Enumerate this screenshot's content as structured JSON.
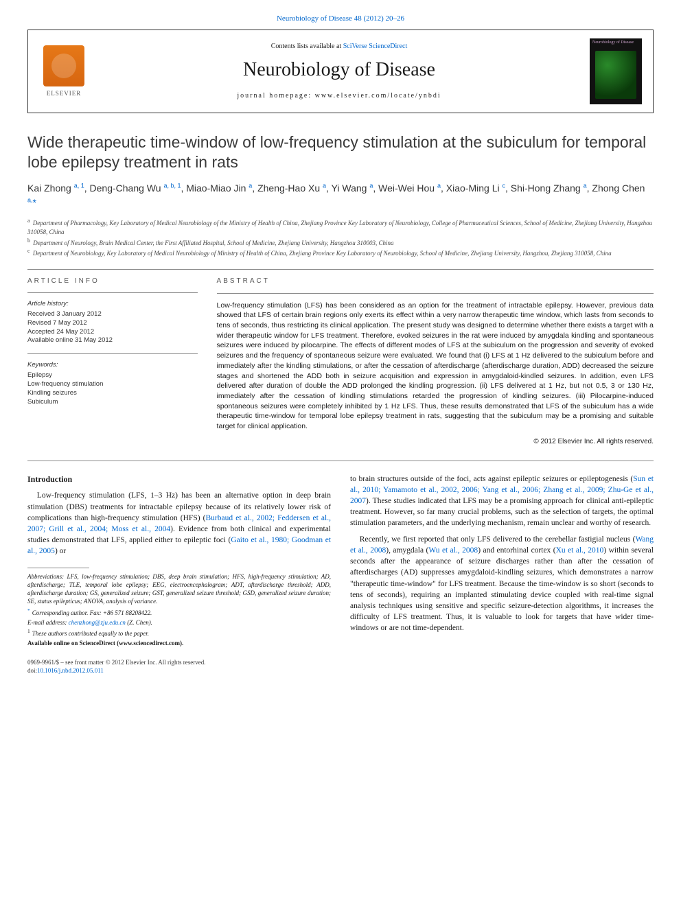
{
  "page": {
    "top_citation_link": "Neurobiology of Disease 48 (2012) 20–26",
    "contents_line_prefix": "Contents lists available at ",
    "contents_link": "SciVerse ScienceDirect",
    "journal_title": "Neurobiology of Disease",
    "homepage_prefix": "journal homepage: ",
    "homepage_url": "www.elsevier.com/locate/ynbdi",
    "elsevier_label": "ELSEVIER",
    "cover_label": "Neurobiology of Disease"
  },
  "article": {
    "title": "Wide therapeutic time-window of low-frequency stimulation at the subiculum for temporal lobe epilepsy treatment in rats",
    "authors_html": "Kai Zhong <sup>a, 1</sup>, Deng-Chang Wu <sup>a, b, 1</sup>, Miao-Miao Jin <sup>a</sup>, Zheng-Hao Xu <sup>a</sup>, Yi Wang <sup>a</sup>, Wei-Wei Hou <sup>a</sup>, Xiao-Ming Li <sup>c</sup>, Shi-Hong Zhang <sup>a</sup>, Zhong Chen <sup>a,</sup><span class='star'>*</span>",
    "affiliations": [
      {
        "marker": "a",
        "text": "Department of Pharmacology, Key Laboratory of Medical Neurobiology of the Ministry of Health of China, Zhejiang Province Key Laboratory of Neurobiology, College of Pharmaceutical Sciences, School of Medicine, Zhejiang University, Hangzhou 310058, China"
      },
      {
        "marker": "b",
        "text": "Department of Neurology, Brain Medical Center, the First Affiliated Hospital, School of Medicine, Zhejiang University, Hangzhou 310003, China"
      },
      {
        "marker": "c",
        "text": "Department of Neurobiology, Key Laboratory of Medical Neurobiology of Ministry of Health of China, Zhejiang Province Key Laboratory of Neurobiology, School of Medicine, Zhejiang University, Hangzhou, Zhejiang 310058, China"
      }
    ]
  },
  "meta": {
    "article_info_heading": "article info",
    "abstract_heading": "abstract",
    "history_title": "Article history:",
    "history": [
      "Received 3 January 2012",
      "Revised 7 May 2012",
      "Accepted 24 May 2012",
      "Available online 31 May 2012"
    ],
    "keywords_title": "Keywords:",
    "keywords": [
      "Epilepsy",
      "Low-frequency stimulation",
      "Kindling seizures",
      "Subiculum"
    ],
    "abstract": "Low-frequency stimulation (LFS) has been considered as an option for the treatment of intractable epilepsy. However, previous data showed that LFS of certain brain regions only exerts its effect within a very narrow therapeutic time window, which lasts from seconds to tens of seconds, thus restricting its clinical application. The present study was designed to determine whether there exists a target with a wider therapeutic window for LFS treatment. Therefore, evoked seizures in the rat were induced by amygdala kindling and spontaneous seizures were induced by pilocarpine. The effects of different modes of LFS at the subiculum on the progression and severity of evoked seizures and the frequency of spontaneous seizure were evaluated. We found that (i) LFS at 1 Hz delivered to the subiculum before and immediately after the kindling stimulations, or after the cessation of afterdischarge (afterdischarge duration, ADD) decreased the seizure stages and shortened the ADD both in seizure acquisition and expression in amygdaloid-kindled seizures. In addition, even LFS delivered after duration of double the ADD prolonged the kindling progression. (ii) LFS delivered at 1 Hz, but not 0.5, 3 or 130 Hz, immediately after the cessation of kindling stimulations retarded the progression of kindling seizures. (iii) Pilocarpine-induced spontaneous seizures were completely inhibited by 1 Hz LFS. Thus, these results demonstrated that LFS of the subiculum has a wide therapeutic time-window for temporal lobe epilepsy treatment in rats, suggesting that the subiculum may be a promising and suitable target for clinical application.",
    "copyright": "© 2012 Elsevier Inc. All rights reserved."
  },
  "body": {
    "intro_heading": "Introduction",
    "col1_p1_pre": "Low-frequency stimulation (LFS, 1–3 Hz) has been an alternative option in deep brain stimulation (DBS) treatments for intractable epilepsy because of its relatively lower risk of complications than high-frequency stimulation (HFS) (",
    "col1_p1_link1": "Burbaud et al., 2002; Feddersen et al., 2007; Grill et al., 2004; Moss et al., 2004",
    "col1_p1_mid": "). Evidence from both clinical and experimental studies demonstrated that LFS, applied either to epileptic foci (",
    "col1_p1_link2": "Gaito et al., 1980; Goodman et al., 2005",
    "col1_p1_post": ") or",
    "col2_p1_pre": "to brain structures outside of the foci, acts against epileptic seizures or epileptogenesis (",
    "col2_p1_link": "Sun et al., 2010; Yamamoto et al., 2002, 2006; Yang et al., 2006; Zhang et al., 2009; Zhu-Ge et al., 2007",
    "col2_p1_post": "). These studies indicated that LFS may be a promising approach for clinical anti-epileptic treatment. However, so far many crucial problems, such as the selection of targets, the optimal stimulation parameters, and the underlying mechanism, remain unclear and worthy of research.",
    "col2_p2_pre": "Recently, we first reported that only LFS delivered to the cerebellar fastigial nucleus (",
    "col2_p2_link1": "Wang et al., 2008",
    "col2_p2_mid1": "), amygdala (",
    "col2_p2_link2": "Wu et al., 2008",
    "col2_p2_mid2": ") and entorhinal cortex (",
    "col2_p2_link3": "Xu et al., 2010",
    "col2_p2_post": ") within several seconds after the appearance of seizure discharges rather than after the cessation of afterdischarges (AD) suppresses amygdaloid-kindling seizures, which demonstrates a narrow \"therapeutic time-window\" for LFS treatment. Because the time-window is so short (seconds to tens of seconds), requiring an implanted stimulating device coupled with real-time signal analysis techniques using sensitive and specific seizure-detection algorithms, it increases the difficulty of LFS treatment. Thus, it is valuable to look for targets that have wider time-windows or are not time-dependent."
  },
  "footnotes": {
    "abbrev_label": "Abbreviations:",
    "abbrev": "LFS, low-frequency stimulation; DBS, deep brain stimulation; HFS, high-frequency stimulation; AD, afterdischarge; TLE, temporal lobe epilepsy; EEG, electroencephalogram; ADT, afterdischarge threshold; ADD, afterdischarge duration; GS, generalized seizure; GST, generalized seizure threshold; GSD, generalized seizure duration; SE, status epilepticus; ANOVA, analysis of variance.",
    "corresponding": "Corresponding author. Fax: +86 571 88208422.",
    "email_label": "E-mail address:",
    "email": "chenzhong@zju.edu.cn",
    "email_suffix": " (Z. Chen).",
    "equal": "These authors contributed equally to the paper.",
    "available": "Available online on ScienceDirect (www.sciencedirect.com)."
  },
  "bottom": {
    "issn_line": "0969-9961/$ – see front matter © 2012 Elsevier Inc. All rights reserved.",
    "doi_prefix": "doi:",
    "doi": "10.1016/j.nbd.2012.05.011"
  },
  "colors": {
    "link": "#0066cc",
    "elsevier_orange": "#e67817",
    "text": "#1a1a1a",
    "rule": "#888888"
  }
}
